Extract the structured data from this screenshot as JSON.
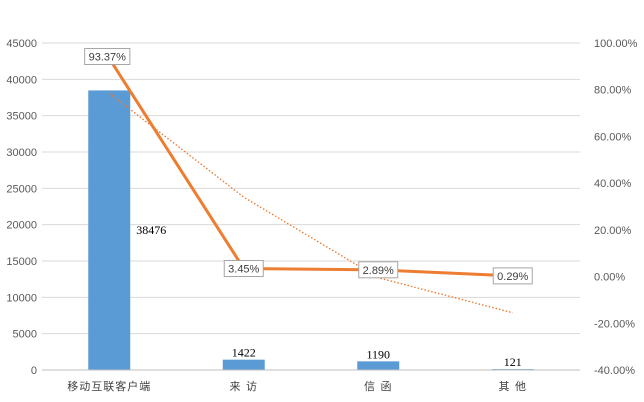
{
  "chart_data": {
    "type": "bar",
    "categories": [
      "移动互联客户端",
      "来 访",
      "信 函",
      "其 他"
    ],
    "series": [
      {
        "type": "bar",
        "axis": "left",
        "values": [
          38476,
          1422,
          1190,
          121
        ],
        "color": "#5B9BD5"
      },
      {
        "type": "line",
        "axis": "right",
        "values": [
          93.37,
          3.45,
          2.89,
          0.29
        ],
        "value_labels": [
          "93.37%",
          "3.45%",
          "2.89%",
          "0.29%"
        ],
        "color": "#ED7D31"
      },
      {
        "type": "trendline",
        "axis": "right",
        "style": "dotted",
        "values": [
          78.5,
          34.0,
          -0.5,
          -15.5
        ],
        "color": "#ED7D31"
      }
    ],
    "y_left": {
      "lim": [
        0,
        45000
      ],
      "ticks": [
        "0",
        "5000",
        "10000",
        "15000",
        "20000",
        "25000",
        "30000",
        "35000",
        "40000",
        "45000"
      ]
    },
    "y_right": {
      "lim": [
        -40,
        100
      ],
      "ticks": [
        "-40.00%",
        "-20.00%",
        "0.00%",
        "20.00%",
        "40.00%",
        "60.00%",
        "80.00%",
        "100.00%"
      ]
    },
    "grid": true,
    "legend": "none",
    "title": "",
    "xlabel": "",
    "ylabel": ""
  }
}
